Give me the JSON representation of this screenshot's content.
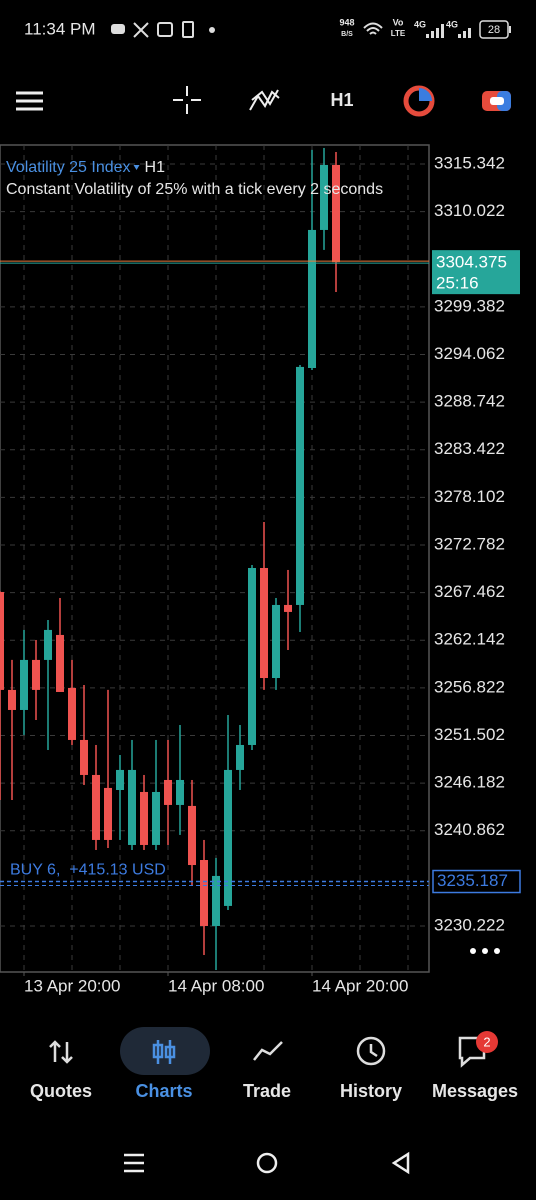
{
  "status_bar": {
    "time": "11:34 PM",
    "speed": "948",
    "speed_unit": "B/S",
    "volte": "Vo",
    "volte2": "LTE",
    "net1": "4G",
    "net2": "4G",
    "battery": "28"
  },
  "toolbar": {
    "timeframe": "H1"
  },
  "chart_data": {
    "type": "candlestick",
    "title": "Volatility 25 Index",
    "timeframe": "H1",
    "subtitle": "Constant Volatility of 25% with a tick every 2 seconds",
    "open": [
      3267.53,
      3256.59,
      3254.35,
      3259.94,
      3259.94,
      3262.73,
      3256.81,
      3251.0,
      3247.09,
      3245.64,
      3245.41,
      3239.27,
      3245.19,
      3239.27,
      3246.53,
      3243.74,
      3243.63,
      3237.59,
      3230.22,
      3232.46,
      3247.65,
      3250.44,
      3270.21,
      3257.92,
      3266.08,
      3266.08,
      3292.55,
      3307.97,
      3315.23
    ],
    "high": [
      3267.6,
      3259.94,
      3263.29,
      3262.17,
      3264.4,
      3266.86,
      3259.94,
      3257.14,
      3250.44,
      3256.59,
      3249.32,
      3251.0,
      3247.09,
      3251.0,
      3251.0,
      3252.67,
      3246.53,
      3239.83,
      3237.82,
      3253.79,
      3252.67,
      3270.55,
      3275.35,
      3266.86,
      3269.99,
      3292.89,
      3316.91,
      3317.13,
      3316.68
    ],
    "low": [
      3244.3,
      3244.3,
      3251.56,
      3253.23,
      3249.88,
      3256.36,
      3250.44,
      3245.97,
      3238.71,
      3238.93,
      3239.83,
      3238.71,
      3238.71,
      3238.71,
      3239.27,
      3240.39,
      3234.8,
      3226.98,
      3225.3,
      3232.01,
      3245.41,
      3249.88,
      3256.59,
      3256.59,
      3261.05,
      3263.06,
      3292.33,
      3305.74,
      3301.04
    ],
    "close": [
      3256.59,
      3254.35,
      3259.94,
      3256.59,
      3263.29,
      3256.36,
      3251.0,
      3247.09,
      3239.83,
      3239.83,
      3247.65,
      3247.65,
      3239.27,
      3245.19,
      3243.74,
      3246.53,
      3237.03,
      3230.22,
      3235.81,
      3247.65,
      3250.44,
      3270.21,
      3257.92,
      3266.08,
      3265.3,
      3292.67,
      3307.97,
      3315.23,
      3304.375
    ],
    "up_color": "#26a69a",
    "down_color": "#ef5350",
    "ylim": [
      3225.08,
      3317.46
    ],
    "yticks": [
      3315.342,
      3310.022,
      3299.382,
      3294.062,
      3288.742,
      3283.422,
      3278.102,
      3272.782,
      3267.462,
      3262.142,
      3256.822,
      3251.502,
      3246.182,
      3240.862,
      3230.222
    ],
    "xlim": [
      0,
      35.75
    ],
    "xticks": [
      {
        "value": 2,
        "label": "13 Apr 20:00"
      },
      {
        "value": 14,
        "label": "14 Apr 08:00"
      },
      {
        "value": 26,
        "label": "14 Apr 20:00"
      }
    ],
    "grid": true,
    "current_price": 3304.375,
    "timer": "25:16",
    "position": {
      "label": "BUY 6,  +415.13 USD",
      "price": 3235.187,
      "color": "#3d7be0"
    }
  },
  "nav": {
    "items": [
      "Quotes",
      "Charts",
      "Trade",
      "History",
      "Messages"
    ],
    "badge": "2"
  }
}
